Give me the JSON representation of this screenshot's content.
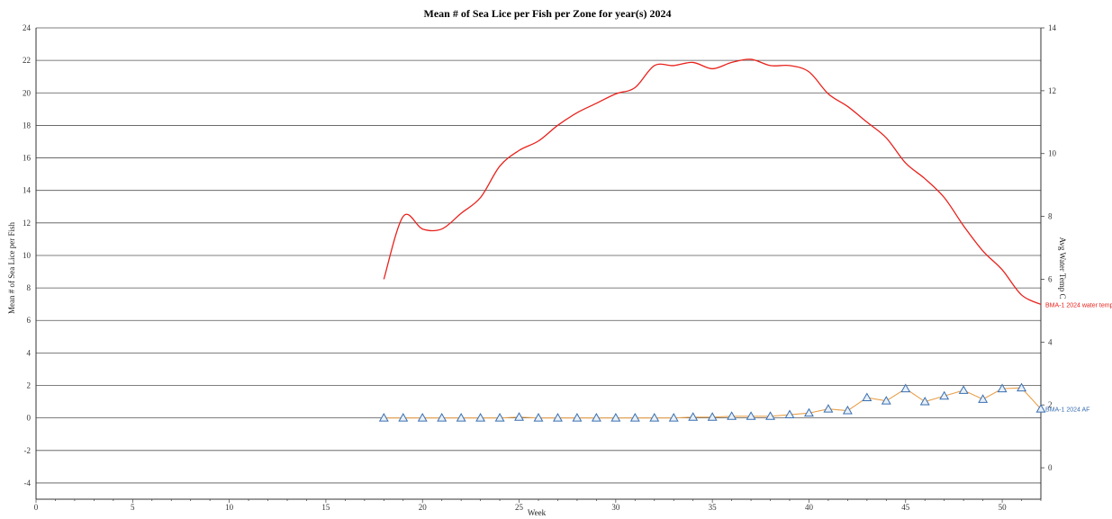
{
  "chart_data": {
    "type": "line",
    "title": "Mean # of Sea Lice per Fish per Zone for year(s) 2024",
    "xlabel": "Week",
    "ylabel": "Mean # of Sea Lice per Fish",
    "y2label": "Avg Water Temp C",
    "xlim": [
      0,
      52
    ],
    "ylim": [
      -5,
      24
    ],
    "y2lim": [
      -1,
      14
    ],
    "x_ticks": [
      0,
      5,
      10,
      15,
      20,
      25,
      30,
      35,
      40,
      45,
      50
    ],
    "y_ticks": [
      -4,
      -2,
      0,
      2,
      4,
      6,
      8,
      10,
      12,
      14,
      16,
      18,
      20,
      22,
      24
    ],
    "y2_ticks": [
      0,
      2,
      4,
      6,
      8,
      10,
      12,
      14
    ],
    "grid": true,
    "series": [
      {
        "name": "BMA-1 2024 water temp",
        "axis": "right",
        "color": "#e8221c",
        "x": [
          18,
          19,
          20,
          21,
          22,
          23,
          24,
          25,
          26,
          27,
          28,
          29,
          30,
          31,
          32,
          33,
          34,
          35,
          36,
          37,
          38,
          39,
          40,
          41,
          42,
          43,
          44,
          45,
          46,
          47,
          48,
          49,
          50,
          51,
          52
        ],
        "values": [
          6.0,
          8.0,
          7.6,
          7.6,
          8.1,
          8.6,
          9.6,
          10.1,
          10.4,
          10.9,
          11.3,
          11.6,
          11.9,
          12.1,
          12.8,
          12.8,
          12.9,
          12.7,
          12.9,
          13.0,
          12.8,
          12.8,
          12.6,
          11.9,
          11.5,
          11.0,
          10.5,
          9.7,
          9.2,
          8.6,
          7.7,
          6.9,
          6.3,
          5.5,
          5.2
        ]
      },
      {
        "name": "BMA-1 2024 AF",
        "axis": "left",
        "color": "#e8a04a",
        "marker_color": "#3a6fb0",
        "x": [
          18,
          19,
          20,
          21,
          22,
          23,
          24,
          25,
          26,
          27,
          28,
          29,
          30,
          31,
          32,
          33,
          34,
          35,
          36,
          37,
          38,
          39,
          40,
          41,
          42,
          43,
          44,
          45,
          46,
          47,
          48,
          49,
          50,
          51,
          52
        ],
        "values": [
          0.0,
          0.0,
          0.0,
          0.0,
          0.0,
          0.0,
          0.0,
          0.05,
          0.0,
          0.0,
          0.0,
          0.0,
          0.0,
          0.0,
          0.0,
          0.0,
          0.05,
          0.05,
          0.1,
          0.1,
          0.1,
          0.2,
          0.3,
          0.55,
          0.45,
          1.25,
          1.05,
          1.8,
          1.0,
          1.35,
          1.7,
          1.15,
          1.8,
          1.85,
          0.55
        ]
      }
    ]
  }
}
